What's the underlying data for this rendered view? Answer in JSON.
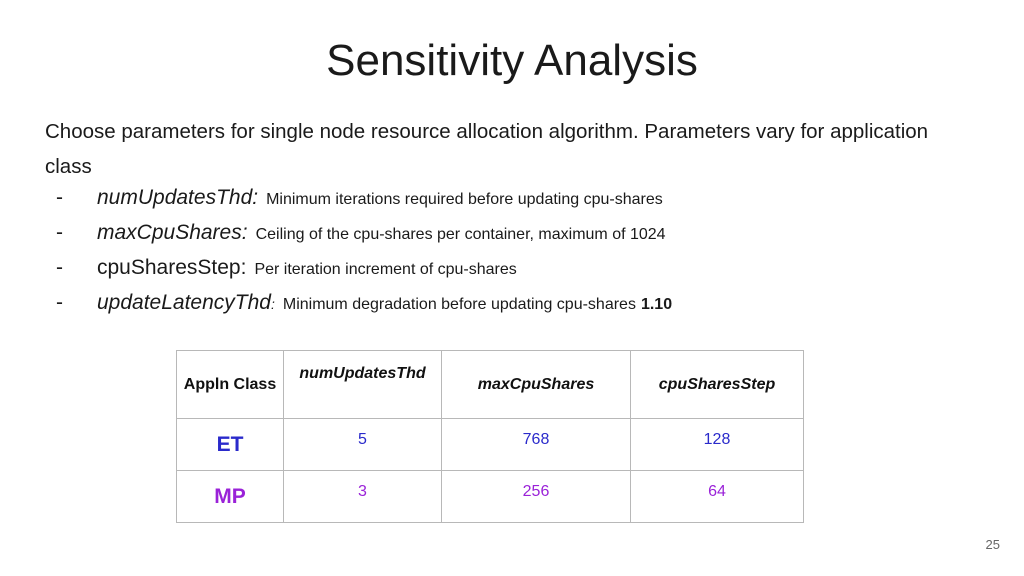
{
  "title": "Sensitivity Analysis",
  "intro": "Choose parameters for single node resource allocation algorithm. Parameters vary for application class",
  "bullets": [
    {
      "dash": "-",
      "term": "numUpdatesThd:",
      "desc": "Minimum iterations required before updating cpu-shares"
    },
    {
      "dash": "-",
      "term": "maxCpuShares:",
      "desc": "Ceiling of the cpu-shares per container, maximum of 1024"
    },
    {
      "dash": "-",
      "term": "cpuSharesStep:",
      "desc": "Per iteration increment of cpu-shares"
    },
    {
      "dash": "-",
      "term": "updateLatencyThd",
      "sep": ":",
      "desc": "Minimum degradation before updating cpu-shares",
      "value": "1.10"
    }
  ],
  "table": {
    "headers": [
      "Appln Class",
      "numUpdatesThd",
      "maxCpuShares",
      "cpuSharesStep"
    ],
    "rows": [
      {
        "class": "ET",
        "values": [
          "5",
          "768",
          "128"
        ],
        "class_color": "#2a2acb",
        "value_color": "#2a2acb"
      },
      {
        "class": "MP",
        "values": [
          "3",
          "256",
          "64"
        ],
        "class_color": "#9a22d8",
        "value_color": "#9a22d8"
      }
    ]
  },
  "page_number": "25"
}
